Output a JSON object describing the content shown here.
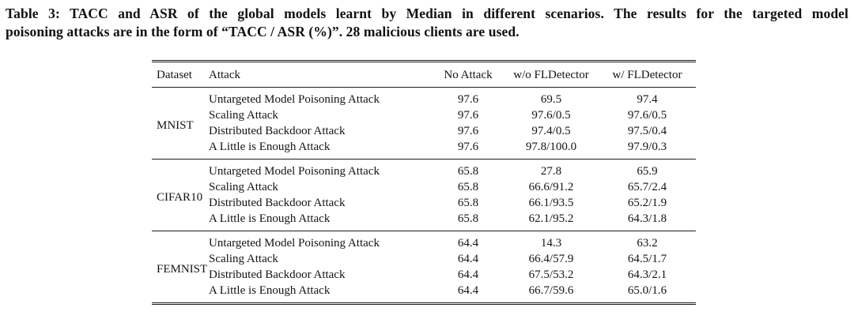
{
  "caption": {
    "line1": "Table 3: TACC and ASR of the global models learnt by Median in different scenarios. The results for the targeted model",
    "line2": "poisoning attacks are in the form of “TACC / ASR (%)”. 28 malicious clients are used."
  },
  "table": {
    "headers": {
      "dataset": "Dataset",
      "attack": "Attack",
      "no_attack": "No Attack",
      "wo_fldetector": "w/o FLDetector",
      "w_fldetector": "w/ FLDetector"
    },
    "sections": [
      {
        "dataset": "MNIST",
        "rows": [
          {
            "attack": "Untargeted Model Poisoning Attack",
            "no_attack": "97.6",
            "wo_fldetector": "69.5",
            "w_fldetector": "97.4"
          },
          {
            "attack": "Scaling Attack",
            "no_attack": "97.6",
            "wo_fldetector": "97.6/0.5",
            "w_fldetector": "97.6/0.5"
          },
          {
            "attack": "Distributed Backdoor Attack",
            "no_attack": "97.6",
            "wo_fldetector": "97.4/0.5",
            "w_fldetector": "97.5/0.4"
          },
          {
            "attack": "A Little is Enough Attack",
            "no_attack": "97.6",
            "wo_fldetector": "97.8/100.0",
            "w_fldetector": "97.9/0.3"
          }
        ]
      },
      {
        "dataset": "CIFAR10",
        "rows": [
          {
            "attack": "Untargeted Model Poisoning Attack",
            "no_attack": "65.8",
            "wo_fldetector": "27.8",
            "w_fldetector": "65.9"
          },
          {
            "attack": "Scaling Attack",
            "no_attack": "65.8",
            "wo_fldetector": "66.6/91.2",
            "w_fldetector": "65.7/2.4"
          },
          {
            "attack": "Distributed Backdoor Attack",
            "no_attack": "65.8",
            "wo_fldetector": "66.1/93.5",
            "w_fldetector": "65.2/1.9"
          },
          {
            "attack": "A Little is Enough Attack",
            "no_attack": "65.8",
            "wo_fldetector": "62.1/95.2",
            "w_fldetector": "64.3/1.8"
          }
        ]
      },
      {
        "dataset": "FEMNIST",
        "rows": [
          {
            "attack": "Untargeted Model Poisoning Attack",
            "no_attack": "64.4",
            "wo_fldetector": "14.3",
            "w_fldetector": "63.2"
          },
          {
            "attack": "Scaling Attack",
            "no_attack": "64.4",
            "wo_fldetector": "66.4/57.9",
            "w_fldetector": "64.5/1.7"
          },
          {
            "attack": "Distributed Backdoor Attack",
            "no_attack": "64.4",
            "wo_fldetector": "67.5/53.2",
            "w_fldetector": "64.3/2.1"
          },
          {
            "attack": "A Little is Enough Attack",
            "no_attack": "64.4",
            "wo_fldetector": "66.7/59.6",
            "w_fldetector": "65.0/1.6"
          }
        ]
      }
    ]
  },
  "colors": {
    "background": "#ffffff",
    "text": "#111111",
    "rule": "#1c1c1c"
  }
}
